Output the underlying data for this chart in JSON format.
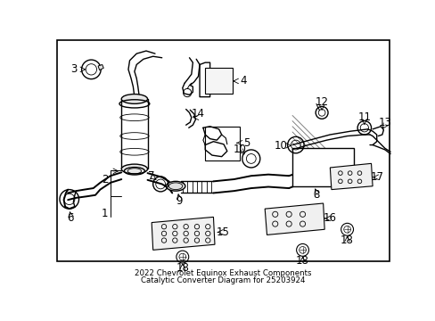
{
  "title_line1": "2022 Chevrolet Equinox Exhaust Components",
  "title_line2": "Catalytic Converter Diagram for 25203924",
  "bg": "#ffffff",
  "fg": "#000000",
  "label_fs": 8.5,
  "small_fs": 7.0
}
